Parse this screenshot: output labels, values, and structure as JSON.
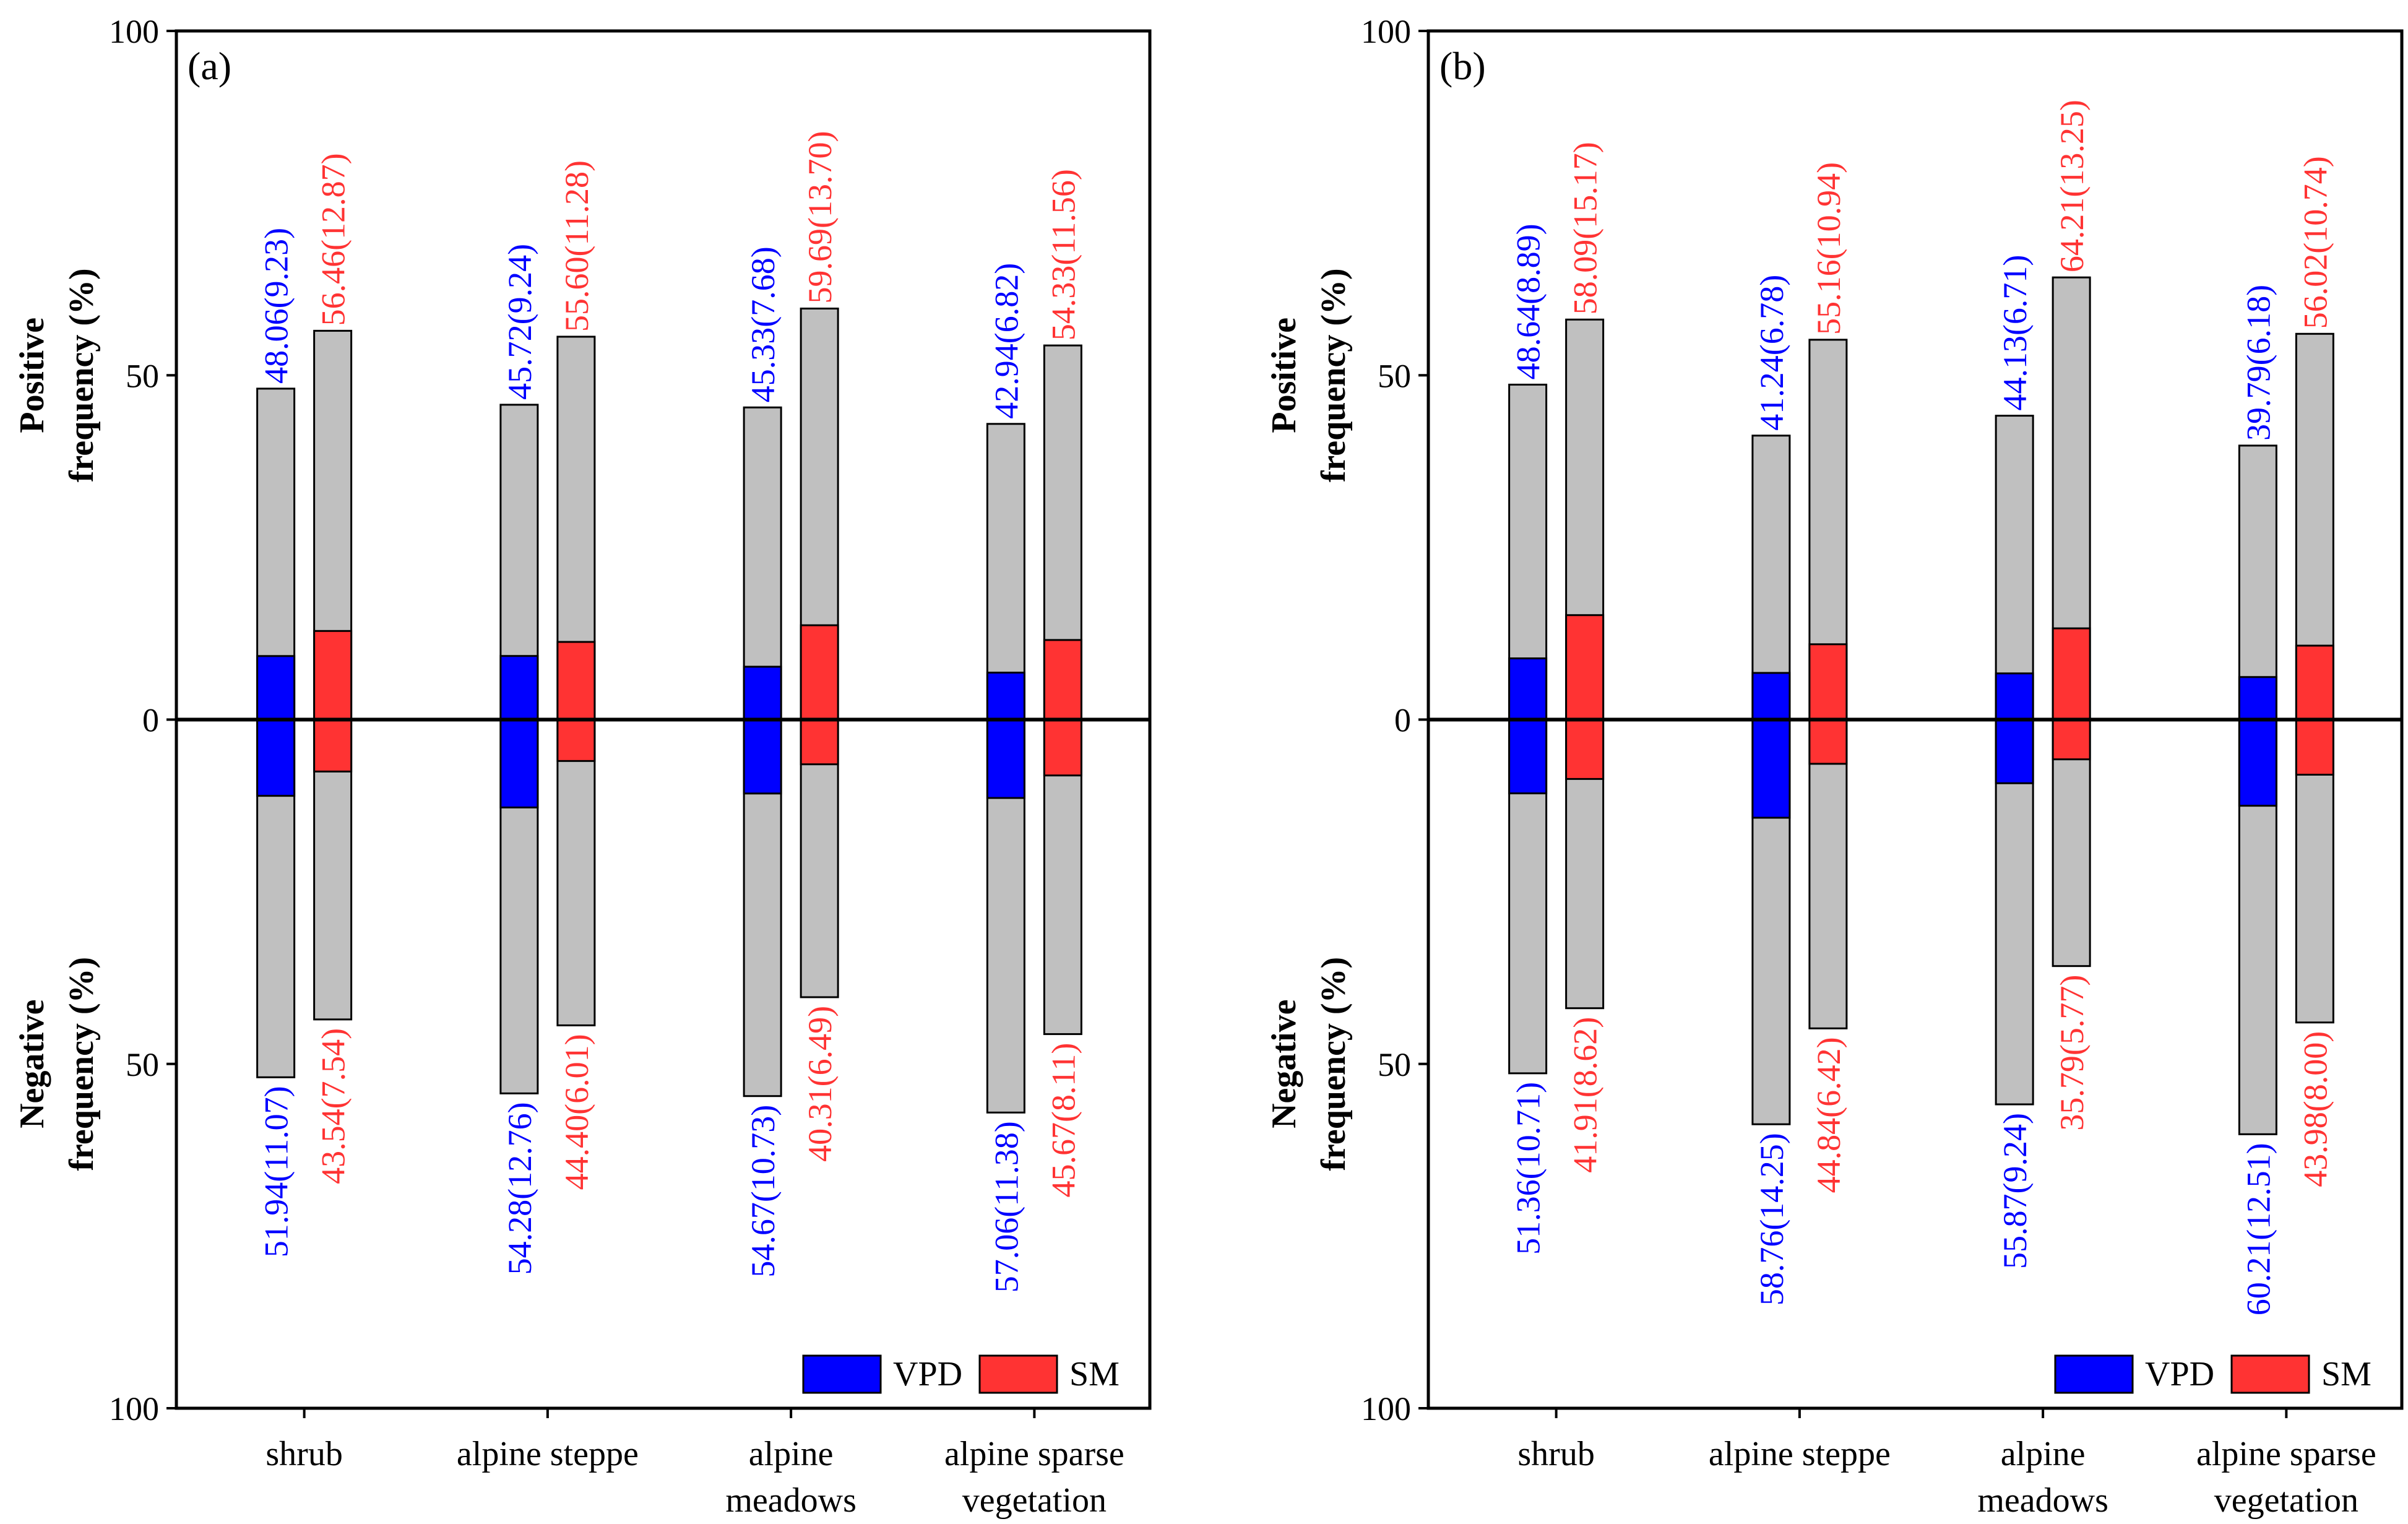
{
  "chart_data": [
    {
      "type": "bar",
      "panel_label": "(a)",
      "categories": [
        "shrub",
        "alpine steppe",
        "alpine meadows",
        "alpine sparse vegetation"
      ],
      "category_lines": [
        [
          "shrub"
        ],
        [
          "alpine steppe"
        ],
        [
          "alpine",
          "meadows"
        ],
        [
          "alpine sparse",
          "vegetation"
        ]
      ],
      "y_axis": {
        "ylim_positive": [
          0,
          100
        ],
        "ylim_negative": [
          0,
          100
        ],
        "ticks": [
          100,
          50,
          0,
          50,
          100
        ],
        "label_positive": [
          "Positive",
          "frequency (%)"
        ],
        "label_negative": [
          "Negative",
          "frequency (%)"
        ]
      },
      "series": [
        {
          "name": "VPD",
          "color": "#0000ff",
          "positive": [
            48.06,
            45.72,
            45.33,
            42.94
          ],
          "positive_sig": [
            9.23,
            9.24,
            7.68,
            6.82
          ],
          "negative": [
            51.94,
            54.28,
            54.67,
            57.06
          ],
          "negative_sig": [
            11.07,
            12.76,
            10.73,
            11.38
          ],
          "positive_labels": [
            "48.06(9.23)",
            "45.72(9.24)",
            "45.33(7.68)",
            "42.94(6.82)"
          ],
          "negative_labels": [
            "51.94(11.07)",
            "54.28(12.76)",
            "54.67(10.73)",
            "57.06(11.38)"
          ]
        },
        {
          "name": "SM",
          "color": "#ff3333",
          "positive": [
            56.46,
            55.6,
            59.69,
            54.33
          ],
          "positive_sig": [
            12.87,
            11.28,
            13.7,
            11.56
          ],
          "negative": [
            43.54,
            44.4,
            40.31,
            45.67
          ],
          "negative_sig": [
            7.54,
            6.01,
            6.49,
            8.11
          ],
          "positive_labels": [
            "56.46(12.87)",
            "55.60(11.28)",
            "59.69(13.70)",
            "54.33(11.56)"
          ],
          "negative_labels": [
            "43.54(7.54)",
            "44.40(6.01)",
            "40.31(6.49)",
            "45.67(8.11)"
          ]
        }
      ],
      "total_bar_color": "#c0c0c0",
      "legend": {
        "position": "bottom-right",
        "entries": [
          "VPD",
          "SM"
        ]
      }
    },
    {
      "type": "bar",
      "panel_label": "(b)",
      "categories": [
        "shrub",
        "alpine steppe",
        "alpine meadows",
        "alpine sparse vegetation"
      ],
      "category_lines": [
        [
          "shrub"
        ],
        [
          "alpine steppe"
        ],
        [
          "alpine",
          "meadows"
        ],
        [
          "alpine sparse",
          "vegetation"
        ]
      ],
      "y_axis": {
        "ylim_positive": [
          0,
          100
        ],
        "ylim_negative": [
          0,
          100
        ],
        "ticks": [
          100,
          50,
          0,
          50,
          100
        ],
        "label_positive": [
          "Positive",
          "frequency (%)"
        ],
        "label_negative": [
          "Negative",
          "frequency (%)"
        ]
      },
      "series": [
        {
          "name": "VPD",
          "color": "#0000ff",
          "positive": [
            48.64,
            41.24,
            44.13,
            39.79
          ],
          "positive_sig": [
            8.89,
            6.78,
            6.71,
            6.18
          ],
          "negative": [
            51.36,
            58.76,
            55.87,
            60.21
          ],
          "negative_sig": [
            10.71,
            14.25,
            9.24,
            12.51
          ],
          "positive_labels": [
            "48.64(8.89)",
            "41.24(6.78)",
            "44.13(6.71)",
            "39.79(6.18)"
          ],
          "negative_labels": [
            "51.36(10.71)",
            "58.76(14.25)",
            "55.87(9.24)",
            "60.21(12.51)"
          ]
        },
        {
          "name": "SM",
          "color": "#ff3333",
          "positive": [
            58.09,
            55.16,
            64.21,
            56.02
          ],
          "positive_sig": [
            15.17,
            10.94,
            13.25,
            10.74
          ],
          "negative": [
            41.91,
            44.84,
            35.79,
            43.98
          ],
          "negative_sig": [
            8.62,
            6.42,
            5.77,
            8.0
          ],
          "positive_labels": [
            "58.09(15.17)",
            "55.16(10.94)",
            "64.21(13.25)",
            "56.02(10.74)"
          ],
          "negative_labels": [
            "41.91(8.62)",
            "44.84(6.42)",
            "35.79(5.77)",
            "43.98(8.00)"
          ]
        }
      ],
      "total_bar_color": "#c0c0c0",
      "legend": {
        "position": "bottom-right",
        "entries": [
          "VPD",
          "SM"
        ]
      }
    }
  ]
}
